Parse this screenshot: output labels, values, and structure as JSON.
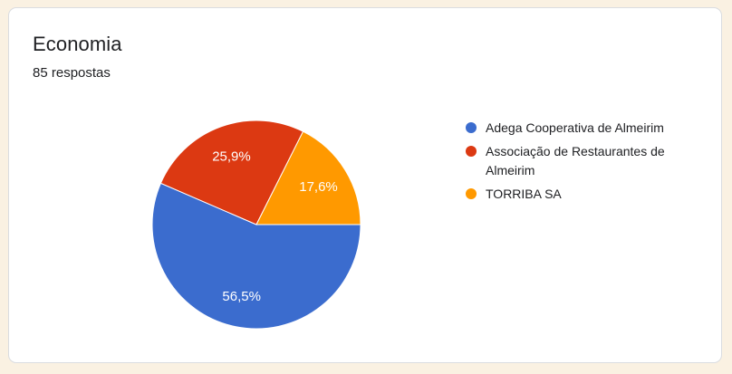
{
  "card": {
    "title": "Economia",
    "responses_label": "85 respostas"
  },
  "chart_data": {
    "type": "pie",
    "title": "Economia",
    "categories": [
      "Adega Cooperativa de Almeirim",
      "Associação de Restaurantes de Almeirim",
      "TORRIBA SA"
    ],
    "values": [
      56.5,
      25.9,
      17.6
    ],
    "value_labels": [
      "56,5%",
      "25,9%",
      "17,6%"
    ],
    "colors": [
      "#3b6cce",
      "#dc3912",
      "#ff9900"
    ],
    "legend_position": "right",
    "start_angle": "3-oclock",
    "direction": "clockwise",
    "total_responses": 85
  },
  "colors": {
    "page_background": "#faf1e2",
    "card_background": "#ffffff",
    "card_border": "#dadce0",
    "title_text": "#202124",
    "subtitle_text": "#202124",
    "legend_text": "#202124",
    "slice_label_text": "#ffffff"
  }
}
